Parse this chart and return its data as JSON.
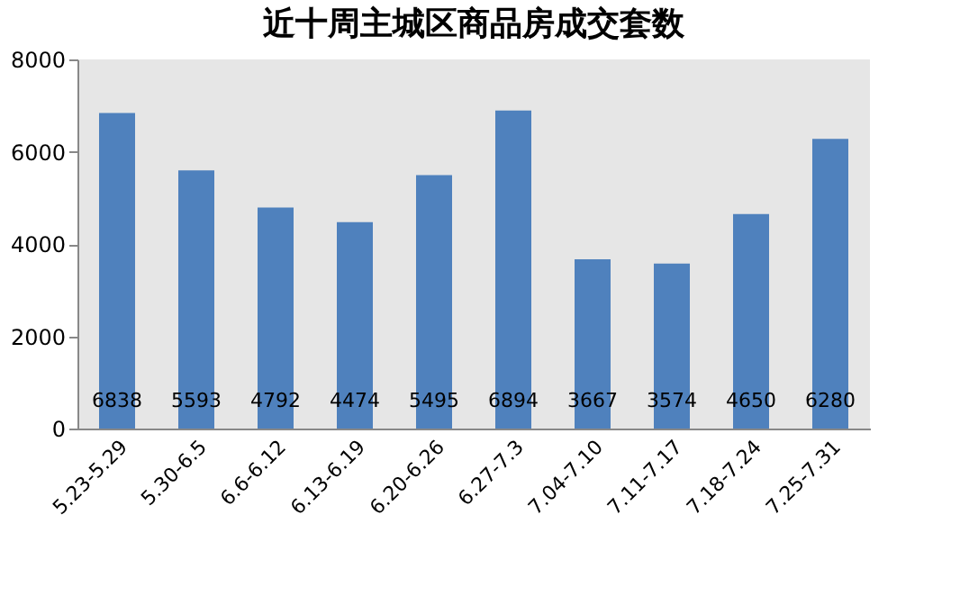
{
  "chart_data": {
    "type": "bar",
    "title": "近十周主城区商品房成交套数",
    "categories": [
      "5.23-5.29",
      "5.30-6.5",
      "6.6-6.12",
      "6.13-6.19",
      "6.20-6.26",
      "6.27-7.3",
      "7.04-7.10",
      "7.11-7.17",
      "7.18-7.24",
      "7.25-7.31"
    ],
    "values": [
      6838,
      5593,
      4792,
      4474,
      5495,
      6894,
      3667,
      3574,
      4650,
      6280
    ],
    "color": "#4f81bd",
    "ylim": [
      0,
      8000
    ],
    "yticks": [
      0,
      2000,
      4000,
      6000,
      8000
    ],
    "grid": false,
    "data_labels": true
  }
}
